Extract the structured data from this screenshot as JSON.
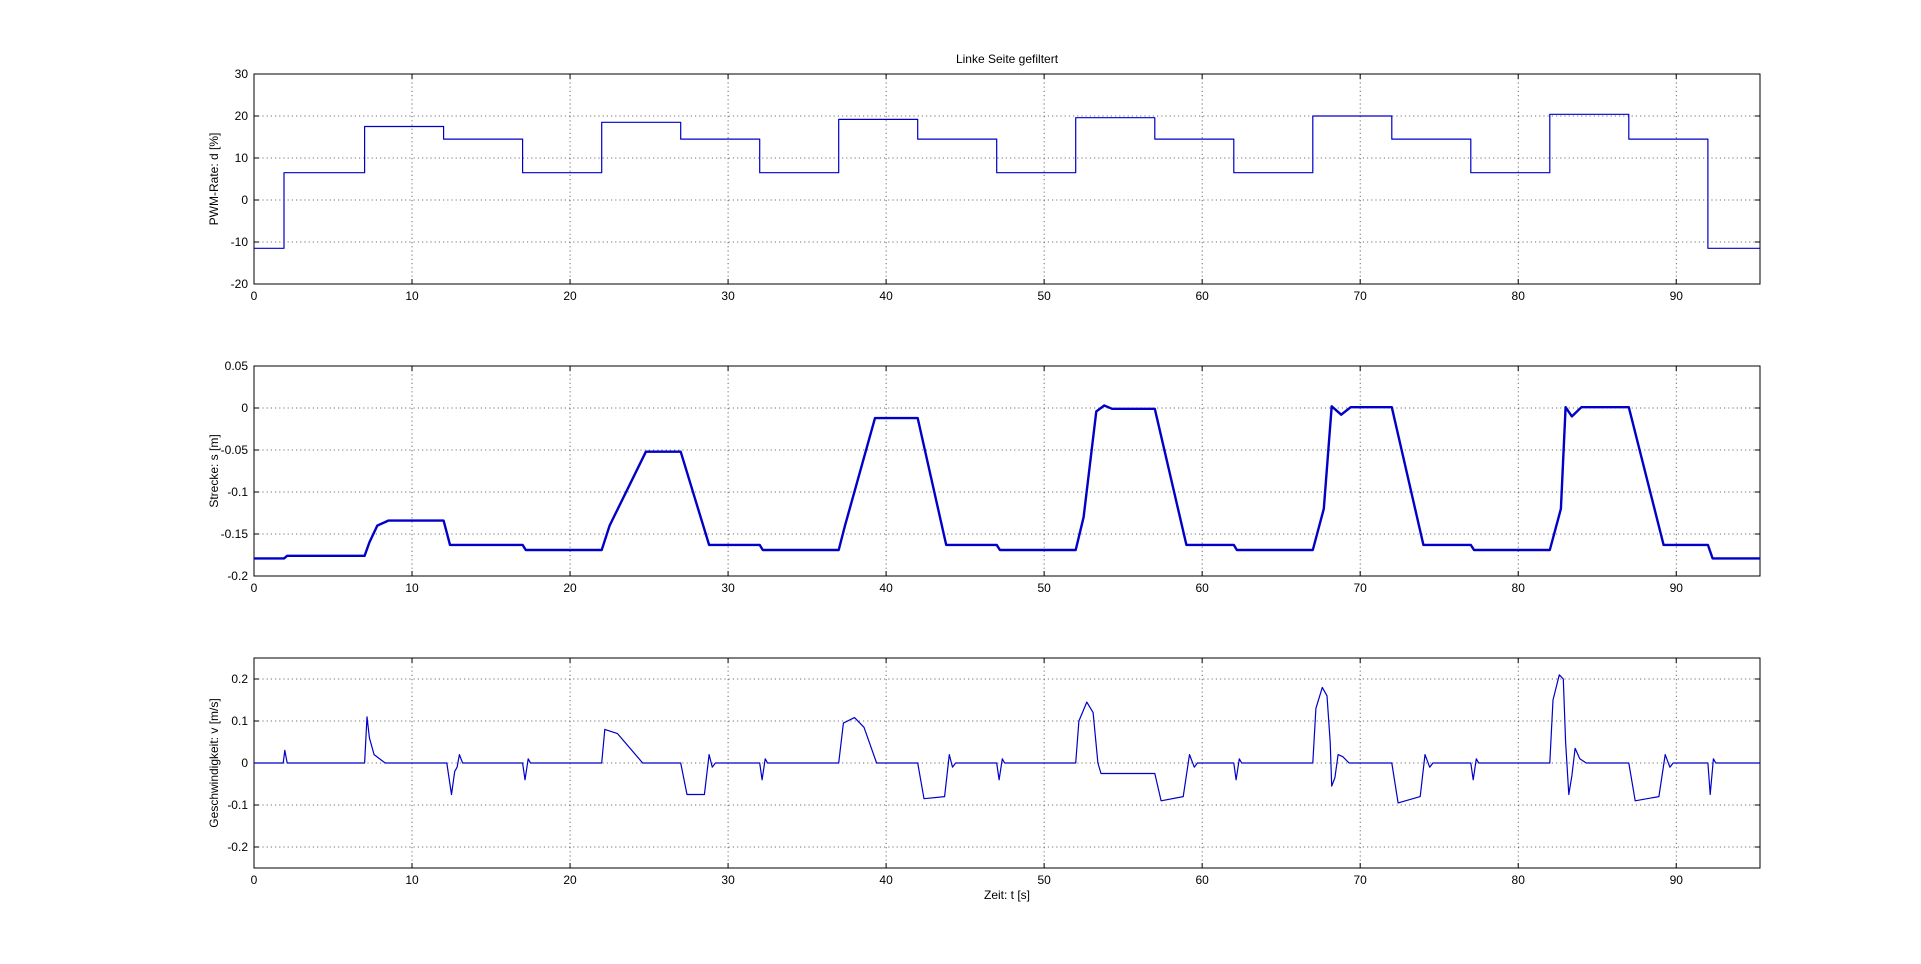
{
  "figure_title": "Linke Seite gefiltert",
  "colors": {
    "line": "#0000c8",
    "axes": "#000000",
    "background": "#ffffff"
  },
  "chart_data": [
    {
      "type": "line",
      "title": "Linke Seite gefiltert",
      "xlabel": "",
      "ylabel": "PWM-Rate: d [%]",
      "xlim": [
        0,
        95.3
      ],
      "ylim": [
        -20,
        30
      ],
      "xticks": [
        0,
        10,
        20,
        30,
        40,
        50,
        60,
        70,
        80,
        90
      ],
      "yticks": [
        -20,
        -10,
        0,
        10,
        20,
        30
      ],
      "grid": true,
      "step": true,
      "series": [
        {
          "x": [
            0,
            1.9,
            7,
            12,
            17,
            22,
            27,
            32,
            37,
            42,
            47,
            52,
            57,
            62,
            67,
            72,
            77,
            82,
            87,
            92,
            95.3
          ],
          "y": [
            -11.5,
            6.5,
            17.5,
            14.5,
            6.5,
            18.5,
            14.5,
            6.5,
            19.2,
            14.5,
            6.5,
            19.6,
            14.5,
            6.5,
            20,
            14.5,
            6.5,
            20.4,
            14.5,
            -11.5,
            -11.5
          ]
        }
      ]
    },
    {
      "type": "line",
      "title": "",
      "xlabel": "",
      "ylabel": "Strecke: s [m]",
      "xlim": [
        0,
        95.3
      ],
      "ylim": [
        -0.2,
        0.05
      ],
      "xticks": [
        0,
        10,
        20,
        30,
        40,
        50,
        60,
        70,
        80,
        90
      ],
      "yticks": [
        -0.2,
        -0.15,
        -0.1,
        -0.05,
        0,
        0.05
      ],
      "grid": true,
      "series": [
        {
          "x": [
            0,
            1.9,
            2.1,
            7,
            7.3,
            7.8,
            8.5,
            12,
            12.4,
            17,
            17.2,
            22,
            22.5,
            24.8,
            27,
            28.8,
            32,
            32.2,
            37,
            37.4,
            39.3,
            42,
            43.8,
            47,
            47.2,
            52,
            52.5,
            53.3,
            53.8,
            54.3,
            57,
            59,
            62,
            62.2,
            67,
            67.7,
            68.2,
            68.8,
            69.4,
            72,
            74,
            77,
            77.2,
            82,
            82.7,
            83,
            83.4,
            84,
            87,
            89.2,
            92,
            92.3,
            95.3
          ],
          "y": [
            -0.179,
            -0.179,
            -0.176,
            -0.176,
            -0.16,
            -0.14,
            -0.134,
            -0.134,
            -0.163,
            -0.163,
            -0.169,
            -0.169,
            -0.14,
            -0.052,
            -0.052,
            -0.163,
            -0.163,
            -0.169,
            -0.169,
            -0.14,
            -0.012,
            -0.012,
            -0.163,
            -0.163,
            -0.169,
            -0.169,
            -0.13,
            -0.004,
            0.003,
            -0.001,
            -0.001,
            -0.163,
            -0.163,
            -0.169,
            -0.169,
            -0.12,
            0.002,
            -0.008,
            0.001,
            0.001,
            -0.163,
            -0.163,
            -0.169,
            -0.169,
            -0.12,
            0.001,
            -0.01,
            0.001,
            0.001,
            -0.163,
            -0.163,
            -0.179,
            -0.179
          ]
        }
      ]
    },
    {
      "type": "line",
      "title": "",
      "xlabel": "Zeit: t [s]",
      "ylabel": "Geschwindigkeit: v [m/s]",
      "xlim": [
        0,
        95.3
      ],
      "ylim": [
        -0.25,
        0.25
      ],
      "xticks": [
        0,
        10,
        20,
        30,
        40,
        50,
        60,
        70,
        80,
        90
      ],
      "yticks": [
        -0.2,
        -0.1,
        0,
        0.1,
        0.2
      ],
      "grid": true,
      "series": [
        {
          "x": [
            0,
            1.85,
            1.95,
            2.1,
            7,
            7.15,
            7.3,
            7.6,
            8.3,
            12.2,
            12.5,
            12.7,
            12.85,
            13,
            13.2,
            17,
            17.15,
            17.35,
            17.5,
            22,
            22.2,
            23,
            24.6,
            27,
            27.4,
            28.5,
            28.8,
            29,
            29.2,
            32,
            32.15,
            32.35,
            32.5,
            37,
            37.3,
            38,
            38.6,
            39.4,
            42,
            42.4,
            43.7,
            44,
            44.2,
            44.4,
            47,
            47.15,
            47.35,
            47.5,
            52,
            52.2,
            52.7,
            53.1,
            53.4,
            53.6,
            57,
            57.4,
            58.8,
            59.2,
            59.5,
            59.7,
            62,
            62.15,
            62.35,
            62.5,
            67,
            67.2,
            67.6,
            67.9,
            68.1,
            68.2,
            68.4,
            68.6,
            68.9,
            69.3,
            72,
            72.4,
            73.8,
            74.1,
            74.4,
            74.6,
            77,
            77.15,
            77.35,
            77.5,
            82,
            82.2,
            82.6,
            82.85,
            83,
            83.2,
            83.4,
            83.6,
            83.9,
            84.3,
            87,
            87.4,
            88.9,
            89.3,
            89.6,
            89.8,
            92,
            92.15,
            92.35,
            92.5,
            95.3
          ],
          "y": [
            0,
            0,
            0.03,
            0,
            0,
            0.11,
            0.06,
            0.02,
            0,
            0,
            -0.075,
            -0.02,
            -0.01,
            0.02,
            0,
            0,
            -0.04,
            0.01,
            0,
            0,
            0.08,
            0.07,
            0,
            0,
            -0.075,
            -0.075,
            0.02,
            -0.01,
            0,
            0,
            -0.04,
            0.01,
            0,
            0,
            0.095,
            0.108,
            0.085,
            0,
            0,
            -0.085,
            -0.08,
            0.02,
            -0.01,
            0,
            0,
            -0.04,
            0.01,
            0,
            0,
            0.1,
            0.145,
            0.12,
            0,
            -0.025,
            -0.025,
            -0.09,
            -0.08,
            0.02,
            -0.01,
            0,
            0,
            -0.04,
            0.01,
            0,
            0,
            0.13,
            0.18,
            0.16,
            0.05,
            -0.055,
            -0.035,
            0.02,
            0.015,
            0,
            0,
            -0.095,
            -0.08,
            0.02,
            -0.01,
            0,
            0,
            -0.04,
            0.01,
            0,
            0,
            0.15,
            0.21,
            0.2,
            0.05,
            -0.075,
            -0.03,
            0.035,
            0.01,
            0,
            0,
            -0.09,
            -0.08,
            0.02,
            -0.01,
            0,
            0,
            -0.075,
            0.01,
            0,
            0
          ]
        }
      ]
    }
  ]
}
